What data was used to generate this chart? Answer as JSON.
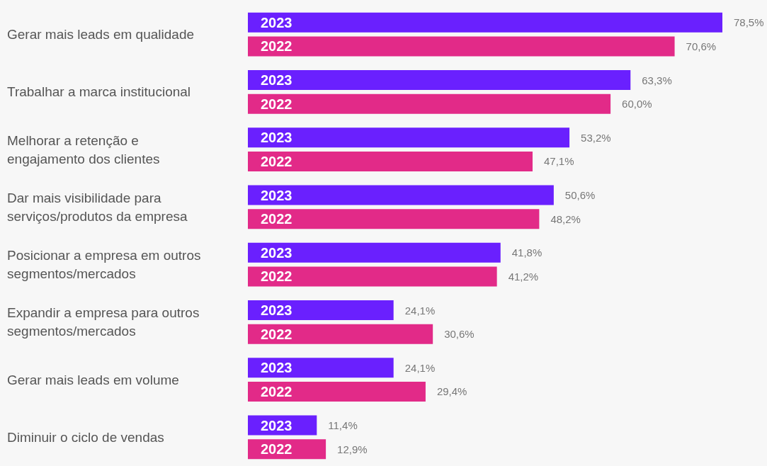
{
  "chart_data": {
    "type": "bar",
    "orientation": "horizontal",
    "categories": [
      "Gerar mais leads em qualidade",
      "Trabalhar a marca institucional",
      "Melhorar a retenção e engajamento dos clientes",
      "Dar mais visibilidade para serviços/produtos da empresa",
      "Posicionar a empresa em outros segmentos/mercados",
      "Expandir a empresa para outros segmentos/mercados",
      "Gerar mais leads em volume",
      "Diminuir o ciclo de vendas"
    ],
    "series": [
      {
        "name": "2023",
        "color": "#6a20fe",
        "values": [
          78.5,
          63.3,
          53.2,
          50.6,
          41.8,
          24.1,
          24.1,
          11.4
        ],
        "value_labels": [
          "78,5%",
          "63,3%",
          "53,2%",
          "50,6%",
          "41,8%",
          "24,1%",
          "24,1%",
          "11,4%"
        ]
      },
      {
        "name": "2022",
        "color": "#e22a88",
        "values": [
          70.6,
          60.0,
          47.1,
          48.2,
          41.2,
          30.6,
          29.4,
          12.9
        ],
        "value_labels": [
          "70,6%",
          "60,0%",
          "47,1%",
          "48,2%",
          "41,2%",
          "30,6%",
          "29,4%",
          "12,9%"
        ]
      }
    ],
    "legend": false
  }
}
